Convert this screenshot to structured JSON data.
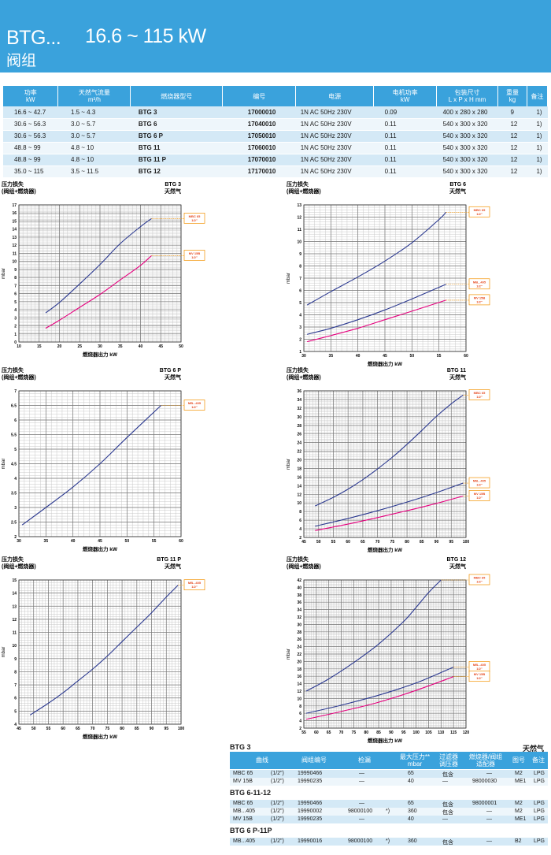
{
  "header": {
    "model": "BTG...",
    "range": "16.6 ~ 115 kW",
    "subtitle": "阀组"
  },
  "spec_table": {
    "headers": [
      "功率\nkW",
      "天然气流量\nm³/h",
      "燃烧器型号",
      "编号",
      "电源",
      "电机功率\nkW",
      "包装尺寸\nL x P x H  mm",
      "重量\nkg",
      "备注"
    ],
    "rows": [
      [
        "16.6 ~ 42.7",
        "1.5 ~ 4.3",
        "BTG 3",
        "17000010",
        "1N AC 50Hz 230V",
        "0.09",
        "400 x 280 x 280",
        "9",
        "1)"
      ],
      [
        "30.6 ~ 56.3",
        "3.0 ~ 5.7",
        "BTG 6",
        "17040010",
        "1N AC 50Hz 230V",
        "0.11",
        "540 x 300 x 320",
        "12",
        "1)"
      ],
      [
        "30.6 ~ 56.3",
        "3.0 ~ 5.7",
        "BTG 6 P",
        "17050010",
        "1N AC 50Hz 230V",
        "0.11",
        "540 x 300 x 320",
        "12",
        "1)"
      ],
      [
        "48.8 ~ 99",
        "4.8 ~ 10",
        "BTG 11",
        "17060010",
        "1N AC 50Hz 230V",
        "0.11",
        "540 x 300 x 320",
        "12",
        "1)"
      ],
      [
        "48.8 ~ 99",
        "4.8 ~ 10",
        "BTG 11 P",
        "17070010",
        "1N AC 50Hz 230V",
        "0.11",
        "540 x 300 x 320",
        "12",
        "1)"
      ],
      [
        "35.0 ~ 115",
        "3.5 ~ 11.5",
        "BTG 12",
        "17170010",
        "1N AC 50Hz 230V",
        "0.11",
        "540 x 300 x 320",
        "12",
        "1)"
      ]
    ]
  },
  "chart_data": [
    {
      "type": "line",
      "model": "BTG 3",
      "gas": "天然气",
      "title": "压力损失",
      "subtitle": "(阀组+燃烧器)",
      "xlabel": "燃烧器出力  kW",
      "ylabel": "mbar",
      "xlim": [
        10,
        50
      ],
      "xticks": [
        10,
        15,
        20,
        25,
        30,
        35,
        40,
        45,
        50
      ],
      "ylim": [
        0,
        17
      ],
      "ystep": 1,
      "series": [
        {
          "name": "MBC 65\n1/2\"",
          "color": "#2b3990",
          "x": [
            16.6,
            20,
            25,
            30,
            35,
            40,
            42.7
          ],
          "y": [
            3.6,
            4.9,
            7.2,
            9.6,
            12.2,
            14.3,
            15.3
          ]
        },
        {
          "name": "MV 15B\n1/2\"",
          "color": "#e6007e",
          "x": [
            16.6,
            20,
            25,
            30,
            35,
            40,
            42.7
          ],
          "y": [
            1.7,
            2.7,
            4.3,
            5.9,
            7.7,
            9.5,
            10.7
          ]
        }
      ]
    },
    {
      "type": "line",
      "model": "BTG  6",
      "gas": "天然气",
      "title": "压力损失",
      "subtitle": "(阀组+燃烧器)",
      "xlabel": "燃烧器出力  kW",
      "ylabel": "mbar",
      "xlim": [
        30,
        60
      ],
      "xticks": [
        30,
        35,
        40,
        45,
        50,
        55,
        60
      ],
      "ylim": [
        1,
        13
      ],
      "ystep": 1,
      "series": [
        {
          "name": "MBC 65\n1/2\"",
          "color": "#2b3990",
          "x": [
            30.6,
            35,
            40,
            45,
            50,
            55,
            56.3
          ],
          "y": [
            4.8,
            5.9,
            7.1,
            8.4,
            9.9,
            11.8,
            12.4
          ]
        },
        {
          "name": "MB...405\n1/2\"",
          "color": "#2b3990",
          "x": [
            30.6,
            35,
            40,
            45,
            50,
            56.3
          ],
          "y": [
            2.4,
            2.9,
            3.6,
            4.4,
            5.3,
            6.5
          ]
        },
        {
          "name": "MV 15B\n1/2\"",
          "color": "#e6007e",
          "x": [
            30.6,
            35,
            40,
            45,
            50,
            56.3
          ],
          "y": [
            1.8,
            2.3,
            2.9,
            3.6,
            4.3,
            5.2
          ]
        }
      ]
    },
    {
      "type": "line",
      "model": "BTG 6 P",
      "gas": "天然气",
      "title": "压力损失",
      "subtitle": "(阀组+燃烧器)",
      "xlabel": "燃烧器出力  kW",
      "ylabel": "mbar",
      "xlim": [
        30,
        60
      ],
      "xticks": [
        30,
        35,
        40,
        45,
        50,
        55,
        60
      ],
      "ylim": [
        2,
        7
      ],
      "ystep": 0.5,
      "series": [
        {
          "name": "MB...405\n1/2\"",
          "color": "#2b3990",
          "x": [
            30.6,
            35,
            40,
            45,
            50,
            56.3
          ],
          "y": [
            2.4,
            3.0,
            3.7,
            4.5,
            5.4,
            6.5
          ]
        }
      ]
    },
    {
      "type": "line",
      "model": "BTG 11",
      "gas": "天然气",
      "title": "压力损失",
      "subtitle": "(阀组+燃烧器)",
      "xlabel": "燃烧器出力  kW",
      "ylabel": "mbar",
      "xlim": [
        45,
        100
      ],
      "xticks": [
        45,
        50,
        55,
        60,
        65,
        70,
        75,
        80,
        85,
        90,
        95,
        100
      ],
      "ylim": [
        2,
        36
      ],
      "ystep": 2,
      "series": [
        {
          "name": "MBC 65\n1/2\"",
          "color": "#2b3990",
          "x": [
            48.8,
            55,
            60,
            65,
            70,
            75,
            80,
            85,
            90,
            95,
            99
          ],
          "y": [
            9.3,
            11.3,
            13.2,
            15.4,
            17.9,
            20.6,
            23.6,
            26.8,
            30.1,
            33,
            35
          ]
        },
        {
          "name": "MB...405\n1/2\"",
          "color": "#2b3990",
          "x": [
            48.8,
            60,
            70,
            80,
            90,
            99
          ],
          "y": [
            4.6,
            6.4,
            8.2,
            10.2,
            12.4,
            14.6
          ]
        },
        {
          "name": "MV 15B\n1/2\"",
          "color": "#e6007e",
          "x": [
            48.8,
            60,
            70,
            80,
            90,
            99
          ],
          "y": [
            3.6,
            5.1,
            6.6,
            8.2,
            9.9,
            11.6
          ]
        }
      ]
    },
    {
      "type": "line",
      "model": "BTG 11 P",
      "gas": "天然气",
      "title": "压力损失",
      "subtitle": "(阀组+燃烧器)",
      "xlabel": "燃烧器出力  kW",
      "ylabel": "mbar",
      "xlim": [
        45,
        100
      ],
      "xticks": [
        45,
        50,
        55,
        60,
        65,
        70,
        75,
        80,
        85,
        90,
        95,
        100
      ],
      "ylim": [
        4,
        15
      ],
      "ystep": 1,
      "series": [
        {
          "name": "MB...405\n1/2\"",
          "color": "#2b3990",
          "x": [
            48.8,
            55,
            60,
            65,
            70,
            75,
            80,
            85,
            90,
            95,
            99
          ],
          "y": [
            4.7,
            5.6,
            6.4,
            7.3,
            8.2,
            9.2,
            10.3,
            11.4,
            12.5,
            13.7,
            14.6
          ]
        }
      ]
    },
    {
      "type": "line",
      "model": "BTG 12",
      "gas": "天然气",
      "title": "压力损失",
      "subtitle": "(阀组+燃烧器)",
      "xlabel": "燃烧器出力  kW",
      "ylabel": "mbar",
      "xlim": [
        55,
        120
      ],
      "xticks": [
        55,
        60,
        65,
        70,
        75,
        80,
        85,
        90,
        95,
        100,
        105,
        110,
        115,
        120
      ],
      "ylim": [
        2,
        42
      ],
      "ystep": 2,
      "series": [
        {
          "name": "MBC 65\n1/2\"",
          "color": "#2b3990",
          "x": [
            56,
            65,
            75,
            85,
            95,
            100,
            105,
            110
          ],
          "y": [
            12,
            15.3,
            19.7,
            24.7,
            30.8,
            34.6,
            38.6,
            42
          ]
        },
        {
          "name": "MB...405\n1/2\"",
          "color": "#2b3990",
          "x": [
            56,
            70,
            85,
            100,
            115
          ],
          "y": [
            6,
            8.2,
            10.9,
            14.2,
            18.5
          ]
        },
        {
          "name": "MV 15B\n1/2\"",
          "color": "#e6007e",
          "x": [
            56,
            70,
            85,
            100,
            115
          ],
          "y": [
            4.4,
            6.5,
            9,
            12.2,
            15.9
          ]
        }
      ]
    }
  ],
  "bottom": {
    "gas": "天然气",
    "headers": [
      "曲线",
      "阀组编号",
      "检漏",
      "最大压力**\nmbar",
      "过滤器\n调压器",
      "燃烧器/阀组\n适配器",
      "图号",
      "备注"
    ],
    "groups": [
      {
        "title": "BTG 3",
        "rows": [
          [
            "MBC 65",
            "(1/2\")",
            "19990466",
            "—",
            "",
            "65",
            "包含",
            "—",
            "M2",
            "LPG"
          ],
          [
            "MV 15B",
            "(1/2\")",
            "19990235",
            "—",
            "",
            "40",
            "—",
            "98000030",
            "ME1",
            "LPG"
          ]
        ]
      },
      {
        "title": "BTG 6-11-12",
        "rows": [
          [
            "MBC 65",
            "(1/2\")",
            "19990466",
            "—",
            "",
            "65",
            "包含",
            "98000001",
            "M2",
            "LPG"
          ],
          [
            "MB...405",
            "(1/2\")",
            "19990002",
            "98000100",
            "*)",
            "360",
            "包含",
            "—",
            "M2",
            "LPG"
          ],
          [
            "MV 15B",
            "(1/2\")",
            "19990235",
            "—",
            "",
            "40",
            "—",
            "—",
            "ME1",
            "LPG"
          ]
        ]
      },
      {
        "title": "BTG 6 P-11P",
        "rows": [
          [
            "MB...405",
            "(1/2\")",
            "19990016",
            "98000100",
            "*)",
            "360",
            "包含",
            "—",
            "B2",
            "LPG"
          ]
        ]
      }
    ]
  }
}
